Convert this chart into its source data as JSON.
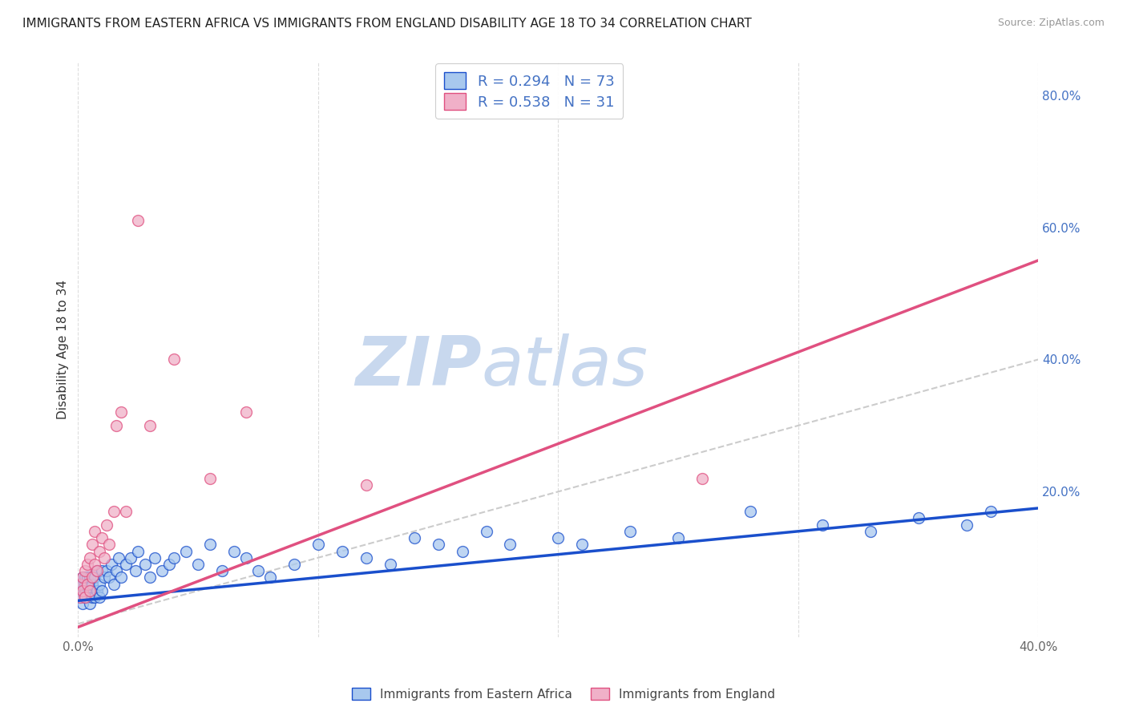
{
  "title": "IMMIGRANTS FROM EASTERN AFRICA VS IMMIGRANTS FROM ENGLAND DISABILITY AGE 18 TO 34 CORRELATION CHART",
  "source": "Source: ZipAtlas.com",
  "ylabel": "Disability Age 18 to 34",
  "xlim": [
    0.0,
    0.4
  ],
  "ylim": [
    -0.02,
    0.85
  ],
  "series1_color": "#a8c8ee",
  "series2_color": "#f0b0c8",
  "trendline1_color": "#1a4fcc",
  "trendline2_color": "#e05080",
  "diagonal_color": "#cccccc",
  "watermark_zip": "ZIP",
  "watermark_atlas": "atlas",
  "watermark_color_zip": "#c8d8ee",
  "watermark_color_atlas": "#c8d8ee",
  "R1": 0.294,
  "N1": 73,
  "R2": 0.538,
  "N2": 31,
  "trendline1_x0": 0.0,
  "trendline1_y0": 0.035,
  "trendline1_x1": 0.4,
  "trendline1_y1": 0.175,
  "trendline2_x0": 0.0,
  "trendline2_y0": -0.005,
  "trendline2_x1": 0.4,
  "trendline2_y1": 0.55,
  "legend1_label": "R = 0.294   N = 73",
  "legend2_label": "R = 0.538   N = 31",
  "s1_x": [
    0.001,
    0.001,
    0.001,
    0.002,
    0.002,
    0.002,
    0.002,
    0.003,
    0.003,
    0.003,
    0.003,
    0.004,
    0.004,
    0.004,
    0.005,
    0.005,
    0.005,
    0.006,
    0.006,
    0.007,
    0.007,
    0.008,
    0.008,
    0.009,
    0.009,
    0.01,
    0.01,
    0.011,
    0.012,
    0.013,
    0.014,
    0.015,
    0.016,
    0.017,
    0.018,
    0.02,
    0.022,
    0.024,
    0.025,
    0.028,
    0.03,
    0.032,
    0.035,
    0.038,
    0.04,
    0.045,
    0.05,
    0.055,
    0.06,
    0.065,
    0.07,
    0.075,
    0.08,
    0.09,
    0.1,
    0.11,
    0.12,
    0.13,
    0.14,
    0.15,
    0.16,
    0.17,
    0.18,
    0.2,
    0.21,
    0.23,
    0.25,
    0.28,
    0.31,
    0.33,
    0.35,
    0.37,
    0.38
  ],
  "s1_y": [
    0.04,
    0.05,
    0.06,
    0.03,
    0.05,
    0.06,
    0.07,
    0.04,
    0.05,
    0.06,
    0.07,
    0.04,
    0.06,
    0.07,
    0.03,
    0.05,
    0.07,
    0.04,
    0.06,
    0.04,
    0.07,
    0.05,
    0.08,
    0.04,
    0.06,
    0.05,
    0.08,
    0.07,
    0.08,
    0.07,
    0.09,
    0.06,
    0.08,
    0.1,
    0.07,
    0.09,
    0.1,
    0.08,
    0.11,
    0.09,
    0.07,
    0.1,
    0.08,
    0.09,
    0.1,
    0.11,
    0.09,
    0.12,
    0.08,
    0.11,
    0.1,
    0.08,
    0.07,
    0.09,
    0.12,
    0.11,
    0.1,
    0.09,
    0.13,
    0.12,
    0.11,
    0.14,
    0.12,
    0.13,
    0.12,
    0.14,
    0.13,
    0.17,
    0.15,
    0.14,
    0.16,
    0.15,
    0.17
  ],
  "s2_x": [
    0.001,
    0.001,
    0.002,
    0.002,
    0.003,
    0.003,
    0.004,
    0.004,
    0.005,
    0.005,
    0.006,
    0.006,
    0.007,
    0.007,
    0.008,
    0.009,
    0.01,
    0.011,
    0.012,
    0.013,
    0.015,
    0.016,
    0.018,
    0.02,
    0.025,
    0.03,
    0.04,
    0.055,
    0.07,
    0.12,
    0.26
  ],
  "s2_y": [
    0.04,
    0.06,
    0.05,
    0.07,
    0.04,
    0.08,
    0.06,
    0.09,
    0.05,
    0.1,
    0.07,
    0.12,
    0.09,
    0.14,
    0.08,
    0.11,
    0.13,
    0.1,
    0.15,
    0.12,
    0.17,
    0.3,
    0.32,
    0.17,
    0.61,
    0.3,
    0.4,
    0.22,
    0.32,
    0.21,
    0.22
  ]
}
